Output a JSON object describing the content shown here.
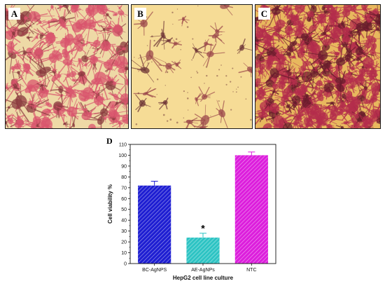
{
  "panels": [
    {
      "label": "A",
      "base": "#eed9a6",
      "cell": "#d9566e",
      "dark": "#8a3a3e"
    },
    {
      "label": "B",
      "base": "#f6dc96",
      "cell": "#9c4a4c",
      "dark": "#6e3436"
    },
    {
      "label": "C",
      "base": "#e8b85e",
      "cell": "#b42d4c",
      "dark": "#6a1c2c"
    }
  ],
  "chart_label": "D",
  "chart_data": {
    "type": "bar",
    "categories": [
      "BC-AgNPS",
      "AE-AgNPs",
      "NTC"
    ],
    "values": [
      72,
      24,
      100
    ],
    "errors": [
      4,
      4,
      3
    ],
    "colors": [
      "#1e1ed2",
      "#2ec4c4",
      "#dc1edc"
    ],
    "xlabel": "HepG2 cell line culture",
    "ylabel": "Cell viability %",
    "ylim": [
      0,
      110
    ],
    "yticks": [
      0,
      10,
      20,
      30,
      40,
      50,
      60,
      70,
      80,
      90,
      100,
      110
    ],
    "annotations": [
      {
        "category": "AE-AgNPs",
        "text": "*"
      }
    ],
    "grid": false
  }
}
